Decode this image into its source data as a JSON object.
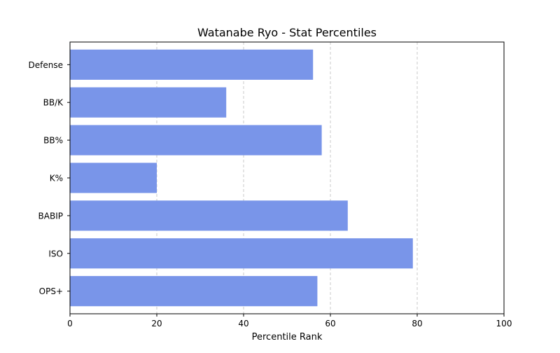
{
  "chart_data": {
    "type": "bar",
    "orientation": "horizontal",
    "title": "Watanabe Ryo - Stat Percentiles",
    "xlabel": "Percentile Rank",
    "ylabel": "",
    "categories": [
      "OPS+",
      "ISO",
      "BABIP",
      "K%",
      "BB%",
      "BB/K",
      "Defense"
    ],
    "values": [
      57,
      79,
      64,
      20,
      58,
      36,
      56
    ],
    "xlim": [
      0,
      100
    ],
    "xticks": [
      0,
      20,
      40,
      60,
      80,
      100
    ],
    "grid": "x-axis dashed",
    "legend": "none",
    "bar_color": "#7995e9",
    "grid_color": "#c8c8c8",
    "axis_color": "#000000"
  }
}
